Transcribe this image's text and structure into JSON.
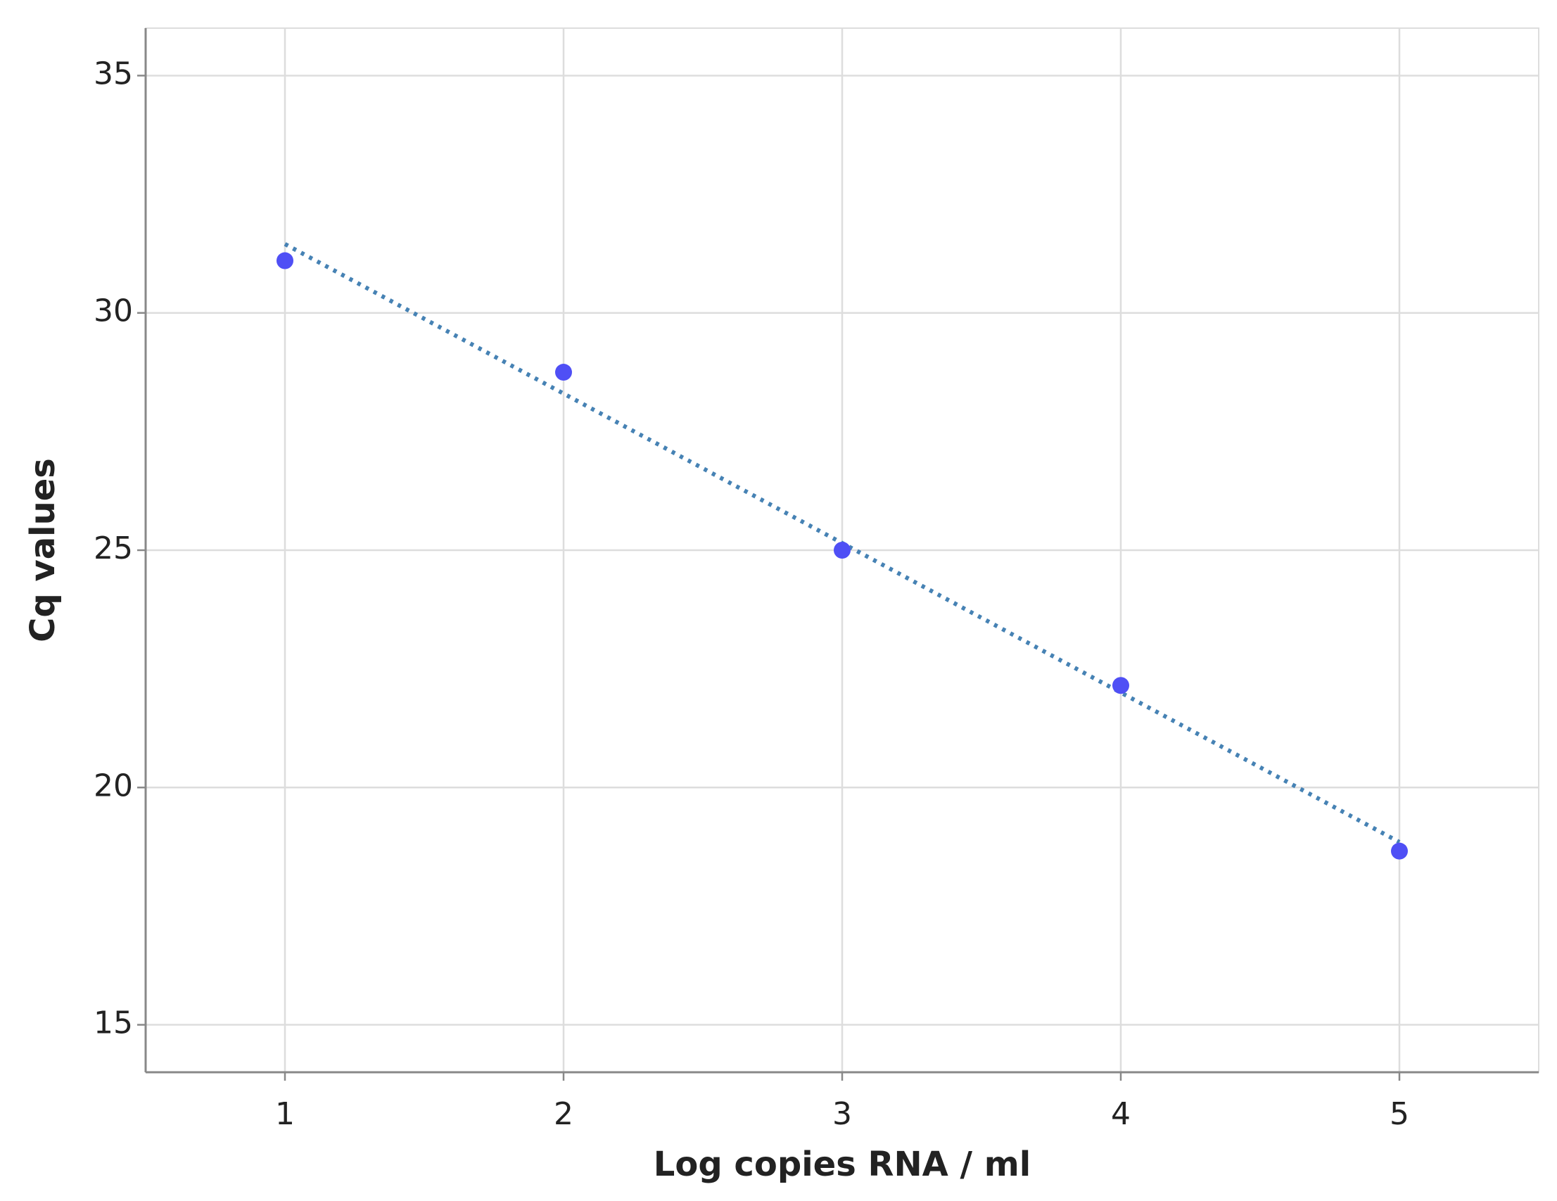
{
  "chart_data": {
    "type": "scatter",
    "x_label": "Log copies RNA / ml",
    "y_label": "Cq values",
    "series": [
      {
        "color": "#4f4ff5",
        "x": [
          1,
          2,
          3,
          4,
          5
        ],
        "values": [
          31.1,
          28.75,
          25.0,
          22.15,
          18.66
        ]
      }
    ],
    "trend_line": {
      "color": "#4682b4",
      "x": [
        1,
        5
      ],
      "values": [
        31.45,
        18.85
      ]
    },
    "xlim": [
      0.5,
      5.5
    ],
    "xticks": [
      1,
      2,
      3,
      4,
      5
    ],
    "ylim": [
      14,
      36
    ],
    "yticks": [
      15,
      20,
      25,
      30,
      35
    ],
    "grid": true
  }
}
